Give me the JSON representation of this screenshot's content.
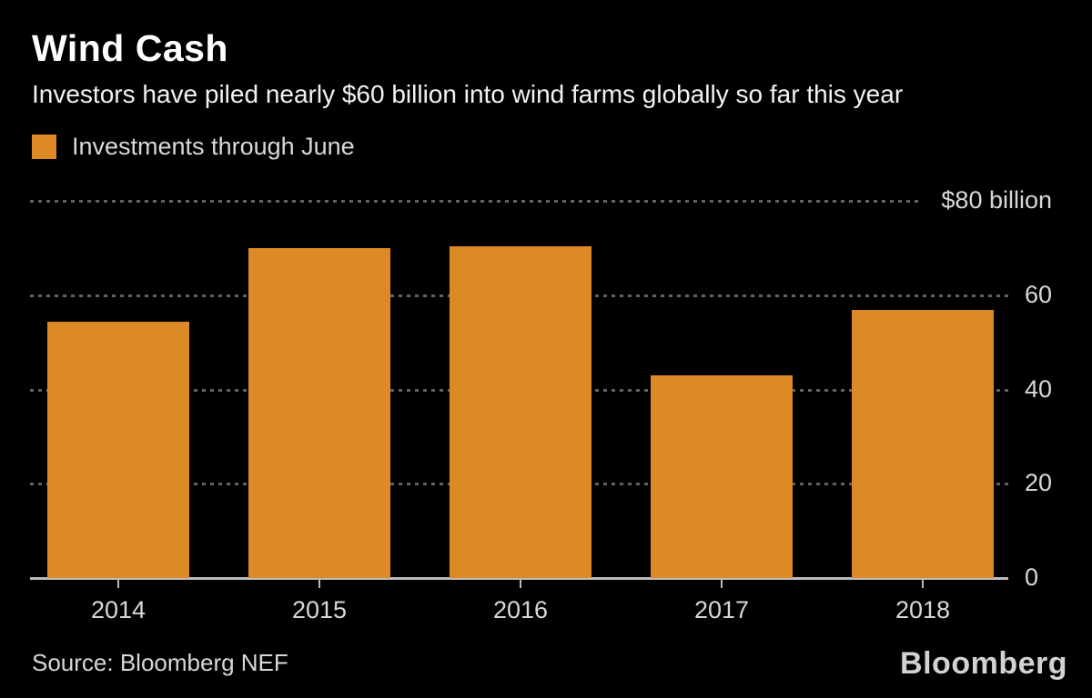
{
  "header": {
    "title": "Wind Cash",
    "subtitle": "Investors have piled nearly $60 billion into wind farms globally so far this year"
  },
  "legend": {
    "label": "Investments through June",
    "color": "#dd8926"
  },
  "chart_data": {
    "type": "bar",
    "categories": [
      "2014",
      "2015",
      "2016",
      "2017",
      "2018"
    ],
    "values": [
      54.5,
      70,
      70.5,
      43,
      57
    ],
    "unit": "$ billion",
    "ylim": [
      0,
      80
    ],
    "y_ticks": [
      {
        "value": 80,
        "label": "$80 billion"
      },
      {
        "value": 60,
        "label": "60"
      },
      {
        "value": 40,
        "label": "40"
      },
      {
        "value": 20,
        "label": "20"
      },
      {
        "value": 0,
        "label": "0"
      }
    ],
    "grid": "dotted horizontal gridlines",
    "legend_position": "top-left",
    "bar_color": "#dd8926"
  },
  "footer": {
    "source": "Source: Bloomberg NEF",
    "brand": "Bloomberg"
  },
  "colors": {
    "background": "#000000",
    "bar": "#dd8926",
    "text_primary": "#ffffff",
    "text_secondary": "#d8d8d8",
    "gridline": "#616161",
    "axis": "#bcbcbc"
  }
}
